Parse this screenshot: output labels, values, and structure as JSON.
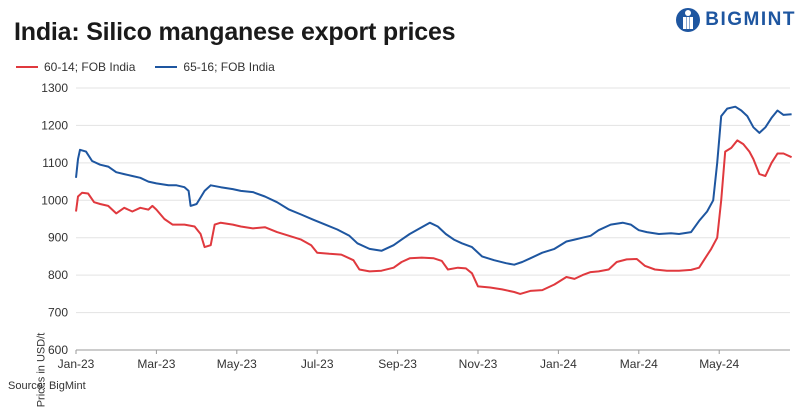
{
  "brand": {
    "name": "BIGMINT"
  },
  "source": "Source: BigMint",
  "colors": {
    "red": "#e0393e",
    "blue": "#1e56a0",
    "grid": "#e3e3e3"
  },
  "chart_data": {
    "type": "line",
    "title": "India: Silico manganese export prices",
    "ylabel": "Prices in USD/t",
    "xlabel": "",
    "ylim": [
      600,
      1300
    ],
    "yticks": [
      600,
      700,
      800,
      900,
      1000,
      1100,
      1200,
      1300
    ],
    "xticks": [
      "Jan-23",
      "Mar-23",
      "May-23",
      "Jul-23",
      "Sep-23",
      "Nov-23",
      "Jan-24",
      "Mar-24",
      "May-24"
    ],
    "grid": "horizontal",
    "legend": "top-left",
    "x_unit": "month index (0 = Jan-23)",
    "series": [
      {
        "name": "60-14; FOB India",
        "color": "#e0393e",
        "points": [
          [
            0.0,
            970
          ],
          [
            0.05,
            1010
          ],
          [
            0.15,
            1020
          ],
          [
            0.3,
            1018
          ],
          [
            0.45,
            995
          ],
          [
            0.6,
            990
          ],
          [
            0.8,
            985
          ],
          [
            1.0,
            965
          ],
          [
            1.2,
            980
          ],
          [
            1.4,
            970
          ],
          [
            1.6,
            980
          ],
          [
            1.8,
            975
          ],
          [
            1.9,
            985
          ],
          [
            2.0,
            975
          ],
          [
            2.2,
            950
          ],
          [
            2.4,
            935
          ],
          [
            2.7,
            935
          ],
          [
            2.95,
            930
          ],
          [
            3.1,
            910
          ],
          [
            3.2,
            875
          ],
          [
            3.35,
            880
          ],
          [
            3.45,
            935
          ],
          [
            3.6,
            940
          ],
          [
            3.9,
            935
          ],
          [
            4.1,
            930
          ],
          [
            4.4,
            925
          ],
          [
            4.7,
            928
          ],
          [
            5.0,
            915
          ],
          [
            5.3,
            905
          ],
          [
            5.6,
            895
          ],
          [
            5.85,
            880
          ],
          [
            6.0,
            860
          ],
          [
            6.3,
            857
          ],
          [
            6.6,
            855
          ],
          [
            6.9,
            840
          ],
          [
            7.05,
            815
          ],
          [
            7.3,
            810
          ],
          [
            7.6,
            812
          ],
          [
            7.9,
            820
          ],
          [
            8.1,
            835
          ],
          [
            8.3,
            845
          ],
          [
            8.6,
            847
          ],
          [
            8.9,
            845
          ],
          [
            9.1,
            838
          ],
          [
            9.25,
            815
          ],
          [
            9.5,
            820
          ],
          [
            9.7,
            818
          ],
          [
            9.85,
            805
          ],
          [
            10.0,
            770
          ],
          [
            10.3,
            767
          ],
          [
            10.6,
            762
          ],
          [
            10.9,
            755
          ],
          [
            11.05,
            750
          ],
          [
            11.3,
            758
          ],
          [
            11.6,
            760
          ],
          [
            11.9,
            775
          ],
          [
            12.2,
            795
          ],
          [
            12.4,
            790
          ],
          [
            12.6,
            800
          ],
          [
            12.8,
            808
          ],
          [
            13.0,
            810
          ],
          [
            13.25,
            815
          ],
          [
            13.45,
            835
          ],
          [
            13.7,
            842
          ],
          [
            13.95,
            843
          ],
          [
            14.15,
            825
          ],
          [
            14.4,
            815
          ],
          [
            14.7,
            812
          ],
          [
            15.0,
            812
          ],
          [
            15.3,
            814
          ],
          [
            15.5,
            820
          ],
          [
            15.65,
            845
          ],
          [
            15.8,
            870
          ],
          [
            15.95,
            900
          ],
          [
            16.05,
            1000
          ],
          [
            16.15,
            1130
          ],
          [
            16.3,
            1140
          ],
          [
            16.45,
            1160
          ],
          [
            16.6,
            1150
          ],
          [
            16.75,
            1130
          ],
          [
            16.85,
            1110
          ],
          [
            17.0,
            1070
          ],
          [
            17.15,
            1065
          ],
          [
            17.3,
            1100
          ],
          [
            17.45,
            1125
          ],
          [
            17.6,
            1125
          ],
          [
            17.8,
            1115
          ]
        ]
      },
      {
        "name": "65-16; FOB India",
        "color": "#1e56a0",
        "points": [
          [
            0.0,
            1060
          ],
          [
            0.05,
            1110
          ],
          [
            0.1,
            1135
          ],
          [
            0.25,
            1130
          ],
          [
            0.4,
            1105
          ],
          [
            0.6,
            1095
          ],
          [
            0.8,
            1090
          ],
          [
            1.0,
            1075
          ],
          [
            1.2,
            1070
          ],
          [
            1.4,
            1065
          ],
          [
            1.6,
            1060
          ],
          [
            1.8,
            1050
          ],
          [
            2.0,
            1045
          ],
          [
            2.3,
            1040
          ],
          [
            2.5,
            1040
          ],
          [
            2.7,
            1035
          ],
          [
            2.8,
            1025
          ],
          [
            2.85,
            985
          ],
          [
            3.0,
            990
          ],
          [
            3.2,
            1025
          ],
          [
            3.35,
            1040
          ],
          [
            3.6,
            1035
          ],
          [
            3.9,
            1030
          ],
          [
            4.1,
            1025
          ],
          [
            4.4,
            1022
          ],
          [
            4.7,
            1010
          ],
          [
            5.0,
            995
          ],
          [
            5.3,
            975
          ],
          [
            5.6,
            962
          ],
          [
            5.9,
            948
          ],
          [
            6.2,
            935
          ],
          [
            6.5,
            922
          ],
          [
            6.8,
            905
          ],
          [
            7.0,
            885
          ],
          [
            7.3,
            870
          ],
          [
            7.6,
            865
          ],
          [
            7.9,
            880
          ],
          [
            8.1,
            895
          ],
          [
            8.3,
            910
          ],
          [
            8.55,
            925
          ],
          [
            8.8,
            940
          ],
          [
            9.0,
            930
          ],
          [
            9.2,
            910
          ],
          [
            9.4,
            895
          ],
          [
            9.6,
            885
          ],
          [
            9.85,
            875
          ],
          [
            10.1,
            850
          ],
          [
            10.4,
            840
          ],
          [
            10.7,
            832
          ],
          [
            10.9,
            828
          ],
          [
            11.1,
            835
          ],
          [
            11.3,
            845
          ],
          [
            11.6,
            860
          ],
          [
            11.9,
            870
          ],
          [
            12.2,
            890
          ],
          [
            12.4,
            895
          ],
          [
            12.6,
            900
          ],
          [
            12.8,
            905
          ],
          [
            13.0,
            920
          ],
          [
            13.3,
            935
          ],
          [
            13.6,
            940
          ],
          [
            13.8,
            935
          ],
          [
            14.0,
            920
          ],
          [
            14.2,
            915
          ],
          [
            14.5,
            910
          ],
          [
            14.8,
            912
          ],
          [
            15.0,
            910
          ],
          [
            15.3,
            915
          ],
          [
            15.5,
            945
          ],
          [
            15.7,
            970
          ],
          [
            15.85,
            1000
          ],
          [
            15.95,
            1100
          ],
          [
            16.05,
            1225
          ],
          [
            16.2,
            1245
          ],
          [
            16.4,
            1250
          ],
          [
            16.55,
            1240
          ],
          [
            16.7,
            1225
          ],
          [
            16.85,
            1195
          ],
          [
            17.0,
            1180
          ],
          [
            17.15,
            1195
          ],
          [
            17.3,
            1220
          ],
          [
            17.45,
            1240
          ],
          [
            17.6,
            1228
          ],
          [
            17.8,
            1230
          ]
        ]
      }
    ]
  }
}
